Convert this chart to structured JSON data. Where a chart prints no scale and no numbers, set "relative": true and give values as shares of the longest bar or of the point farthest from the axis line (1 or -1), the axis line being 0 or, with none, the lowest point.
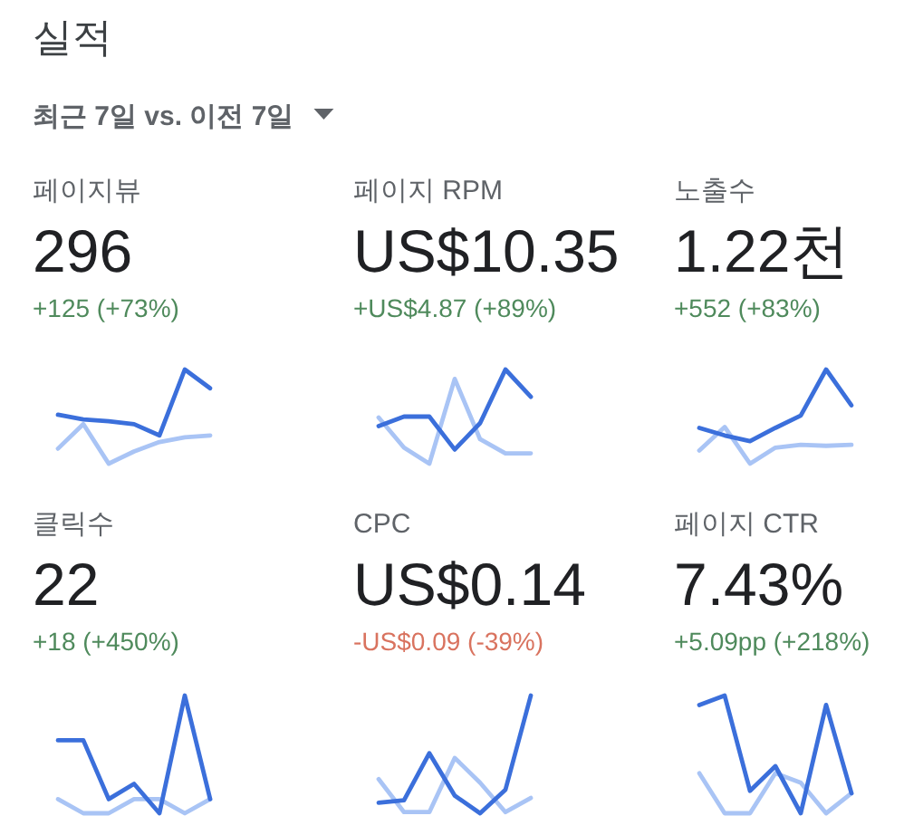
{
  "chart_data": [
    {
      "type": "other",
      "title": "실적",
      "subtitle": "최근 7일 vs. 이전 7일"
    },
    {
      "type": "line",
      "title": "페이지뷰",
      "subtitle": "296",
      "annotations": [
        "+125 (+73%)"
      ],
      "relative": true,
      "categories": [
        null,
        null,
        null,
        null,
        null,
        null,
        null
      ],
      "series": [
        {
          "color": "#a9c4f5",
          "values": [
            0.16,
            0.42,
            0,
            0.13,
            0.23,
            0.28,
            0.3
          ]
        },
        {
          "color": "#3b6fdb",
          "values": [
            0.52,
            0.47,
            0.45,
            0.42,
            0.3,
            1,
            0.8
          ]
        }
      ]
    },
    {
      "type": "line",
      "title": "페이지 RPM",
      "subtitle": "US$10.35",
      "annotations": [
        "+US$4.87 (+89%)"
      ],
      "relative": true,
      "categories": [
        null,
        null,
        null,
        null,
        null,
        null,
        null
      ],
      "series": [
        {
          "color": "#a9c4f5",
          "values": [
            0.49,
            0.17,
            0,
            0.9,
            0.26,
            0.11,
            0.11
          ]
        },
        {
          "color": "#3b6fdb",
          "values": [
            0.4,
            0.5,
            0.5,
            0.15,
            0.43,
            1,
            0.71
          ]
        }
      ]
    },
    {
      "type": "line",
      "title": "노출수",
      "subtitle": "1.22천",
      "annotations": [
        "+552 (+83%)"
      ],
      "relative": true,
      "categories": [
        null,
        null,
        null,
        null,
        null,
        null,
        null
      ],
      "series": [
        {
          "color": "#a9c4f5",
          "values": [
            0.14,
            0.39,
            0,
            0.17,
            0.2,
            0.19,
            0.2
          ]
        },
        {
          "color": "#3b6fdb",
          "values": [
            0.38,
            0.3,
            0.24,
            0.38,
            0.51,
            1,
            0.62
          ]
        }
      ]
    },
    {
      "type": "line",
      "title": "클릭수",
      "subtitle": "22",
      "annotations": [
        "+18 (+450%)"
      ],
      "relative": true,
      "categories": [
        null,
        null,
        null,
        null,
        null,
        null,
        null
      ],
      "series": [
        {
          "color": "#a9c4f5",
          "values": [
            0.12,
            0,
            0,
            0.12,
            0.12,
            0,
            0.12
          ]
        },
        {
          "color": "#3b6fdb",
          "values": [
            0.62,
            0.62,
            0.12,
            0.25,
            0,
            1,
            0.12
          ]
        }
      ]
    },
    {
      "type": "line",
      "title": "CPC",
      "subtitle": "US$0.14",
      "annotations": [
        "-US$0.09 (-39%)"
      ],
      "relative": true,
      "categories": [
        null,
        null,
        null,
        null,
        null,
        null,
        null
      ],
      "series": [
        {
          "color": "#a9c4f5",
          "values": [
            0.29,
            0.01,
            0.01,
            0.47,
            0.26,
            0.01,
            0.13
          ]
        },
        {
          "color": "#3b6fdb",
          "values": [
            0.09,
            0.11,
            0.51,
            0.15,
            0,
            0.2,
            1
          ]
        }
      ]
    },
    {
      "type": "line",
      "title": "페이지 CTR",
      "subtitle": "7.43%",
      "annotations": [
        "+5.09pp (+218%)"
      ],
      "relative": true,
      "categories": [
        null,
        null,
        null,
        null,
        null,
        null,
        null
      ],
      "series": [
        {
          "color": "#a9c4f5",
          "values": [
            0.34,
            0,
            0,
            0.34,
            0.26,
            0,
            0.17
          ]
        },
        {
          "color": "#3b6fdb",
          "values": [
            0.92,
            1,
            0.19,
            0.4,
            0,
            0.92,
            0.17
          ]
        }
      ]
    }
  ]
}
